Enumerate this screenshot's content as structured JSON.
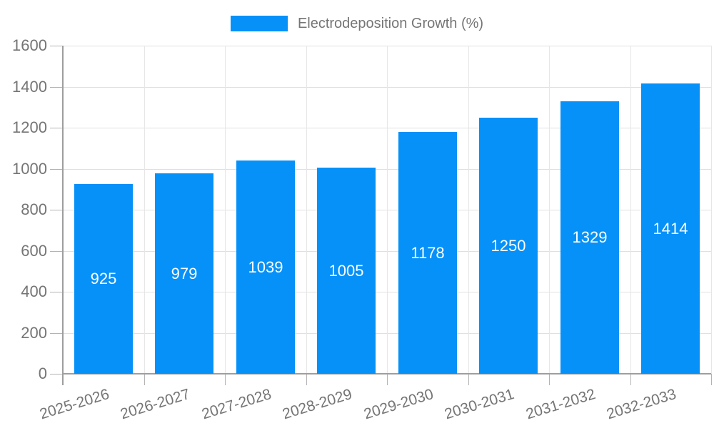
{
  "chart_data": {
    "type": "bar",
    "title": "",
    "legend": "Electrodeposition Growth (%)",
    "legend_position": "top-center",
    "categories": [
      "2025-2026",
      "2026-2027",
      "2027-2028",
      "2028-2029",
      "2029-2030",
      "2030-2031",
      "2031-2032",
      "2032-2033"
    ],
    "values": [
      925,
      979,
      1039,
      1005,
      1178,
      1250,
      1329,
      1414
    ],
    "xlabel": "",
    "ylabel": "",
    "ylim": [
      0,
      1600
    ],
    "yticks": [
      0,
      200,
      400,
      600,
      800,
      1000,
      1200,
      1400,
      1600
    ],
    "grid": true,
    "x_label_rotation_deg": -17,
    "colors": {
      "bar": "#0591f8",
      "value_label": "#ffffff",
      "axis_label": "#757575",
      "legend_text": "#757575",
      "gridline_h": "#e0e0e0",
      "gridline_v": "#e6e6e6",
      "tick": "#b3b3b3",
      "axis_line": "#9e9e9e",
      "background": "#ffffff"
    }
  }
}
